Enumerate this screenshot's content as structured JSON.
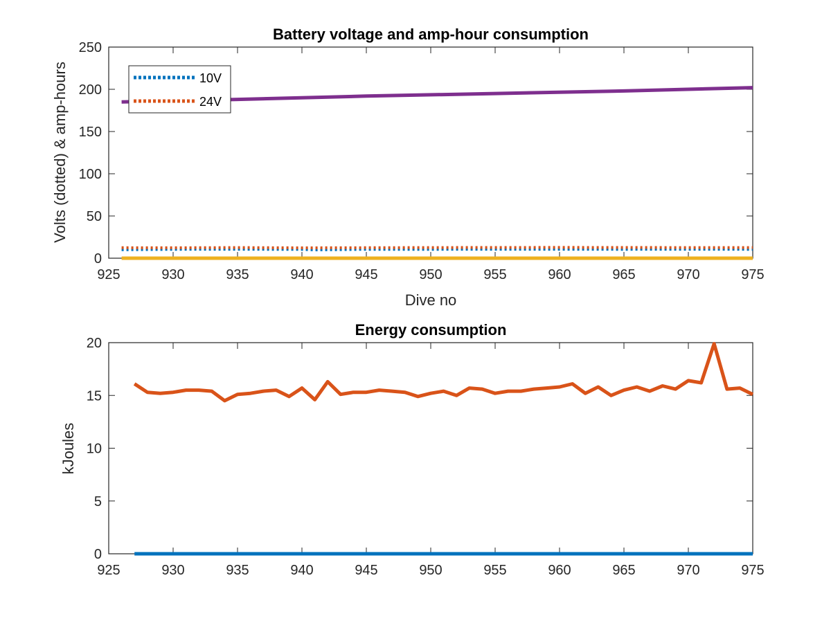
{
  "chart_data": [
    {
      "type": "line",
      "title": "Battery voltage and amp-hour consumption",
      "xlabel": "Dive no",
      "ylabel": "Volts (dotted) & amp-hours",
      "xlim": [
        925,
        975
      ],
      "ylim": [
        0,
        250
      ],
      "xticks": [
        925,
        930,
        935,
        940,
        945,
        950,
        955,
        960,
        965,
        970,
        975
      ],
      "yticks": [
        0,
        50,
        100,
        150,
        200,
        250
      ],
      "grid": false,
      "legend_position": "top-left",
      "series": [
        {
          "name": "10V",
          "style": "dotted",
          "color": "#0072BD",
          "x": [
            926,
            930,
            935,
            940,
            941,
            945,
            950,
            955,
            960,
            965,
            970,
            975
          ],
          "y": [
            10,
            10.5,
            10.6,
            10.4,
            9.8,
            10.5,
            10.5,
            10.6,
            10.6,
            10.5,
            10.6,
            10.5
          ]
        },
        {
          "name": "24V",
          "style": "dotted",
          "color": "#D95319",
          "x": [
            926,
            930,
            935,
            940,
            945,
            950,
            955,
            960,
            965,
            970,
            975
          ],
          "y": [
            12.5,
            12.4,
            12.6,
            12.3,
            12.5,
            12.6,
            12.7,
            12.8,
            12.7,
            12.6,
            12.6
          ]
        },
        {
          "style": "solid",
          "color": "#7E2F8E",
          "x": [
            926,
            935,
            945,
            955,
            965,
            975
          ],
          "y": [
            185,
            188,
            192,
            195,
            198,
            202
          ]
        },
        {
          "style": "solid",
          "color": "#EDB120",
          "x": [
            926,
            975
          ],
          "y": [
            0,
            0
          ]
        }
      ]
    },
    {
      "type": "line",
      "title": "Energy consumption",
      "xlabel": "",
      "ylabel": "kJoules",
      "xlim": [
        925,
        975
      ],
      "ylim": [
        0,
        20
      ],
      "xticks": [
        925,
        930,
        935,
        940,
        945,
        950,
        955,
        960,
        965,
        970,
        975
      ],
      "yticks": [
        0,
        5,
        10,
        15,
        20
      ],
      "grid": false,
      "series": [
        {
          "style": "solid",
          "color": "#0072BD",
          "x": [
            927,
            975
          ],
          "y": [
            0,
            0
          ]
        },
        {
          "style": "solid",
          "color": "#D95319",
          "x": [
            927,
            928,
            929,
            930,
            931,
            932,
            933,
            934,
            935,
            936,
            937,
            938,
            939,
            940,
            941,
            942,
            943,
            944,
            945,
            946,
            947,
            948,
            949,
            950,
            951,
            952,
            953,
            954,
            955,
            956,
            957,
            958,
            959,
            960,
            961,
            962,
            963,
            964,
            965,
            966,
            967,
            968,
            969,
            970,
            971,
            972,
            973,
            974,
            975
          ],
          "y": [
            16.1,
            15.3,
            15.2,
            15.3,
            15.5,
            15.5,
            15.4,
            14.5,
            15.1,
            15.2,
            15.4,
            15.5,
            14.9,
            15.7,
            14.6,
            16.3,
            15.1,
            15.3,
            15.3,
            15.5,
            15.4,
            15.3,
            14.9,
            15.2,
            15.4,
            15.0,
            15.7,
            15.6,
            15.2,
            15.4,
            15.4,
            15.6,
            15.7,
            15.8,
            16.1,
            15.2,
            15.8,
            15.0,
            15.5,
            15.8,
            15.4,
            15.9,
            15.6,
            16.4,
            16.2,
            19.9,
            15.6,
            15.7,
            15.1
          ]
        }
      ]
    }
  ]
}
